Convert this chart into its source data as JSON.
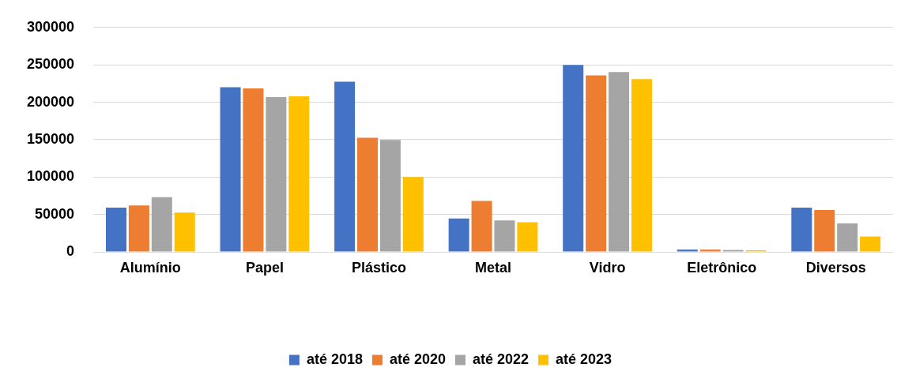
{
  "chart_data": {
    "type": "bar",
    "categories": [
      "Alumínio",
      "Papel",
      "Plástico",
      "Metal",
      "Vidro",
      "Eletrônico",
      "Diversos"
    ],
    "series": [
      {
        "name": "até 2018",
        "color": "#4472c4",
        "values": [
          59000,
          220000,
          227500,
          44500,
          250000,
          3000,
          59000
        ]
      },
      {
        "name": "até 2020",
        "color": "#ed7d31",
        "values": [
          62000,
          218500,
          152500,
          68000,
          236000,
          3000,
          56000
        ]
      },
      {
        "name": "até 2022",
        "color": "#a5a5a5",
        "values": [
          73000,
          207000,
          149500,
          42000,
          240500,
          2500,
          38000
        ]
      },
      {
        "name": "até 2023",
        "color": "#ffc000",
        "values": [
          52500,
          208000,
          100000,
          39500,
          231000,
          2000,
          20500
        ]
      }
    ],
    "ylim": [
      0,
      300000
    ],
    "yticks": [
      0,
      50000,
      100000,
      150000,
      200000,
      250000,
      300000
    ],
    "grid": "y",
    "legend": "bottom"
  }
}
